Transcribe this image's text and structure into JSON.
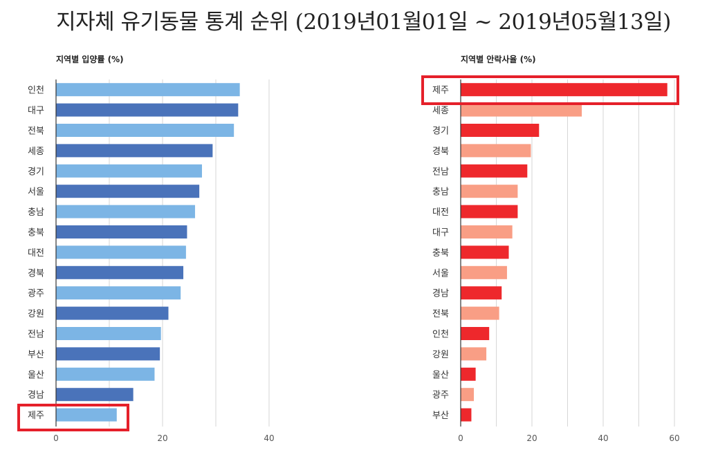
{
  "title": "지자체 유기동물 통계 순위 (2019년01월01일 ~ 2019년05월13일)",
  "colors": {
    "left_dark": "#4a73ba",
    "left_light": "#7cb5e5",
    "right_dark": "#ee282c",
    "right_light": "#f99e85",
    "highlight": "#e5202a",
    "grid": "#d6d6d6",
    "axis": "#333333"
  },
  "chart_data": [
    {
      "type": "bar",
      "orientation": "horizontal",
      "title": "지역별 입양률 (%)",
      "categories": [
        "인천",
        "대구",
        "전북",
        "세종",
        "경기",
        "서울",
        "충남",
        "충북",
        "대전",
        "경북",
        "광주",
        "강원",
        "전남",
        "부산",
        "울산",
        "경남",
        "제주"
      ],
      "values": [
        34.5,
        34.2,
        33.4,
        29.4,
        27.4,
        26.9,
        26.1,
        24.6,
        24.4,
        23.9,
        23.4,
        21.1,
        19.7,
        19.5,
        18.5,
        14.5,
        11.4
      ],
      "xlim": [
        0,
        40
      ],
      "xticks": [
        0,
        20,
        40
      ],
      "xlabel": "",
      "ylabel": "",
      "grid": true,
      "highlighted_category": "제주"
    },
    {
      "type": "bar",
      "orientation": "horizontal",
      "title": "지역별 안락사율 (%)",
      "categories": [
        "제주",
        "세종",
        "경기",
        "경북",
        "전남",
        "충남",
        "대전",
        "대구",
        "충북",
        "서울",
        "경남",
        "전북",
        "인천",
        "강원",
        "울산",
        "광주",
        "부산"
      ],
      "values": [
        58,
        34,
        22,
        19.7,
        18.7,
        16,
        16,
        14.5,
        13.5,
        13,
        11.5,
        10.8,
        8,
        7.2,
        4.2,
        3.7,
        3
      ],
      "xlim": [
        0,
        60
      ],
      "xticks": [
        0,
        20,
        40,
        60
      ],
      "xlabel": "",
      "ylabel": "",
      "grid": true,
      "highlighted_category": "제주"
    }
  ]
}
